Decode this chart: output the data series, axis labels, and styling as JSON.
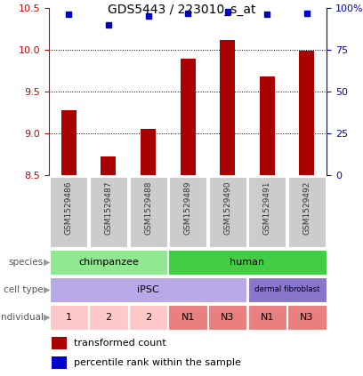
{
  "title": "GDS5443 / 223010_s_at",
  "samples": [
    "GSM1529486",
    "GSM1529487",
    "GSM1529488",
    "GSM1529489",
    "GSM1529490",
    "GSM1529491",
    "GSM1529492"
  ],
  "transformed_counts": [
    9.28,
    8.72,
    9.05,
    9.89,
    10.12,
    9.68,
    9.99
  ],
  "percentile_ranks": [
    96,
    90,
    95,
    97,
    98,
    96,
    97
  ],
  "ylim_left": [
    8.5,
    10.5
  ],
  "ylim_right": [
    0,
    100
  ],
  "yticks_left": [
    8.5,
    9.0,
    9.5,
    10.0,
    10.5
  ],
  "yticks_right": [
    0,
    25,
    50,
    75,
    100
  ],
  "bar_color": "#aa0000",
  "dot_color": "#0000cc",
  "bar_bottom": 8.5,
  "species": [
    {
      "label": "chimpanzee",
      "start": 0,
      "end": 3,
      "color": "#90e890"
    },
    {
      "label": "human",
      "start": 3,
      "end": 7,
      "color": "#44cc44"
    }
  ],
  "cell_type": [
    {
      "label": "iPSC",
      "start": 0,
      "end": 5,
      "color": "#b8a8e8"
    },
    {
      "label": "dermal fibroblast",
      "start": 5,
      "end": 7,
      "color": "#8877cc"
    }
  ],
  "individual": [
    {
      "label": "1",
      "start": 0,
      "end": 1,
      "color": "#ffc8c8"
    },
    {
      "label": "2",
      "start": 1,
      "end": 2,
      "color": "#ffc8c8"
    },
    {
      "label": "2",
      "start": 2,
      "end": 3,
      "color": "#ffc8c8"
    },
    {
      "label": "N1",
      "start": 3,
      "end": 4,
      "color": "#e88080"
    },
    {
      "label": "N3",
      "start": 4,
      "end": 5,
      "color": "#e88080"
    },
    {
      "label": "N1",
      "start": 5,
      "end": 6,
      "color": "#e88080"
    },
    {
      "label": "N3",
      "start": 6,
      "end": 7,
      "color": "#e88080"
    }
  ],
  "row_labels": [
    "species",
    "cell type",
    "individual"
  ],
  "row_keys": [
    "species",
    "cell_type",
    "individual"
  ],
  "legend_bar_label": "transformed count",
  "legend_dot_label": "percentile rank within the sample",
  "left_axis_color": "#cc0000",
  "right_axis_color": "#0000cc",
  "xtick_color": "#333333",
  "grid_yticks": [
    9.0,
    9.5,
    10.0
  ]
}
